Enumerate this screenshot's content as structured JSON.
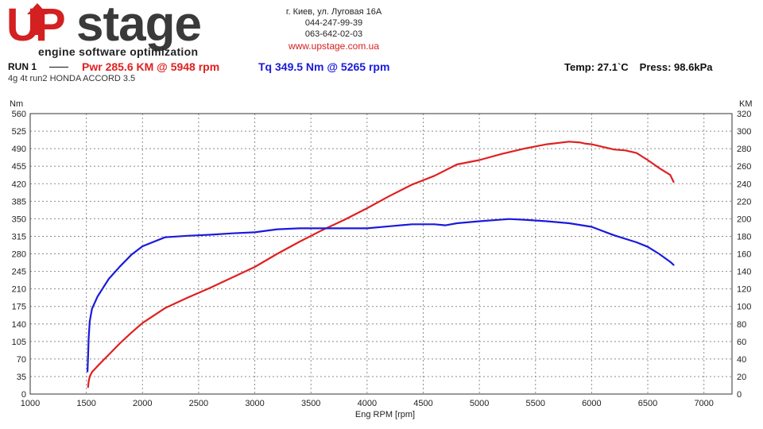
{
  "logo": {
    "brand_u": "U",
    "brand_p": "P",
    "brand_stage": "stage",
    "tagline": "engine software optimization"
  },
  "contact": {
    "address": "г. Киев, ул. Луговая 16А",
    "phone1": "044-247-99-39",
    "phone2": "063-642-02-03",
    "website": "www.upstage.com.ua"
  },
  "header": {
    "run_label": "RUN 1",
    "power": "Pwr  285.6 KM @ 5948 rpm",
    "torque": "Tq  349.5 Nm @ 5265 rpm",
    "temp": "Temp: 27.1`C",
    "press": "Press: 98.6kPa",
    "subtitle": "4g 4t run2 HONDA ACCORD 3.5"
  },
  "colors": {
    "power": "#e02020",
    "torque": "#1a1adc",
    "brand_red": "#d42020",
    "grid": "#8c8c8c"
  },
  "chart_data": {
    "type": "line",
    "xlabel": "Eng RPM [rpm]",
    "ylabel_left": "Nm",
    "ylabel_right": "KM",
    "xlim": [
      1000,
      7250
    ],
    "ylim_left": [
      0,
      560
    ],
    "ylim_right": [
      0,
      320
    ],
    "x_ticks": [
      1000,
      1500,
      2000,
      2500,
      3000,
      3500,
      4000,
      4500,
      5000,
      5500,
      6000,
      6500,
      7000
    ],
    "y_ticks_left": [
      0,
      35,
      70,
      105,
      140,
      175,
      210,
      245,
      280,
      315,
      350,
      385,
      420,
      455,
      490,
      525,
      560
    ],
    "y_ticks_right": [
      0,
      20,
      40,
      60,
      80,
      100,
      120,
      140,
      160,
      180,
      200,
      220,
      240,
      260,
      280,
      300,
      320
    ],
    "grid": true,
    "series": [
      {
        "name": "Pwr",
        "axis": "right",
        "unit": "KM",
        "x": [
          1515,
          1520,
          1530,
          1550,
          1600,
          1700,
          1800,
          1900,
          2000,
          2200,
          2400,
          2600,
          2800,
          3000,
          3200,
          3400,
          3600,
          3800,
          4000,
          4200,
          4400,
          4600,
          4800,
          5000,
          5200,
          5400,
          5600,
          5800,
          5900,
          5948,
          6000,
          6100,
          6200,
          6300,
          6400,
          6500,
          6600,
          6700,
          6730
        ],
        "values": [
          8,
          14,
          20,
          25,
          32,
          45,
          58,
          70,
          81,
          98,
          110,
          121,
          133,
          145,
          160,
          174,
          187,
          199,
          212,
          226,
          239,
          249,
          262,
          267,
          274,
          280,
          285,
          288,
          287,
          285.6,
          285,
          282,
          279,
          278,
          275,
          267,
          258,
          250,
          242
        ]
      },
      {
        "name": "Tq",
        "axis": "left",
        "unit": "Nm",
        "x": [
          1510,
          1515,
          1520,
          1530,
          1550,
          1600,
          1700,
          1800,
          1900,
          2000,
          2200,
          2400,
          2600,
          2800,
          3000,
          3200,
          3400,
          3600,
          3800,
          4000,
          4200,
          4400,
          4600,
          4700,
          4800,
          5000,
          5265,
          5400,
          5600,
          5800,
          6000,
          6200,
          6400,
          6500,
          6600,
          6700,
          6730
        ],
        "values": [
          45,
          75,
          110,
          145,
          170,
          195,
          230,
          255,
          278,
          295,
          313,
          316,
          318,
          321,
          323,
          329,
          331,
          331,
          331,
          331,
          335,
          339,
          339,
          337,
          341,
          345,
          349.5,
          348,
          345,
          341,
          334,
          317,
          303,
          294,
          280,
          264,
          258
        ]
      }
    ]
  }
}
